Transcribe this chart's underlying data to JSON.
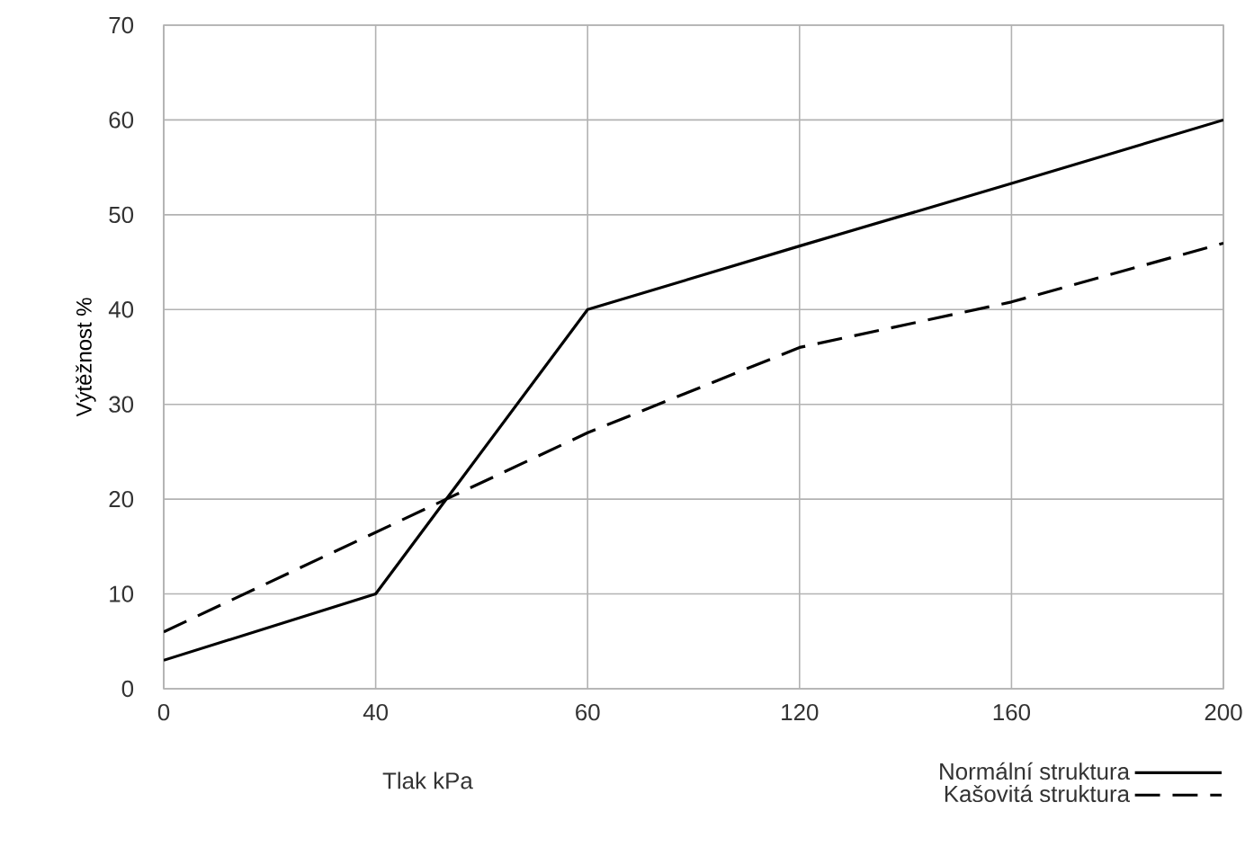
{
  "chart_data": {
    "type": "line",
    "xlabel": "Tlak kPa",
    "ylabel": "Výtěžnost %",
    "categories": [
      "0",
      "40",
      "60",
      "120",
      "160",
      "200"
    ],
    "ylim": [
      0,
      70
    ],
    "yticks": [
      0,
      10,
      20,
      30,
      40,
      50,
      60,
      70
    ],
    "grid": true,
    "legend": "bottom right",
    "series": [
      {
        "name": "Normální struktura",
        "color": "#000000",
        "line_style": "solid",
        "values": [
          3,
          10,
          40,
          46.7,
          53.3,
          60
        ]
      },
      {
        "name": "Kašovitá struktura",
        "color": "#000000",
        "line_style": "dashed",
        "values": [
          6,
          16.5,
          27,
          36,
          40.8,
          47
        ]
      }
    ]
  }
}
